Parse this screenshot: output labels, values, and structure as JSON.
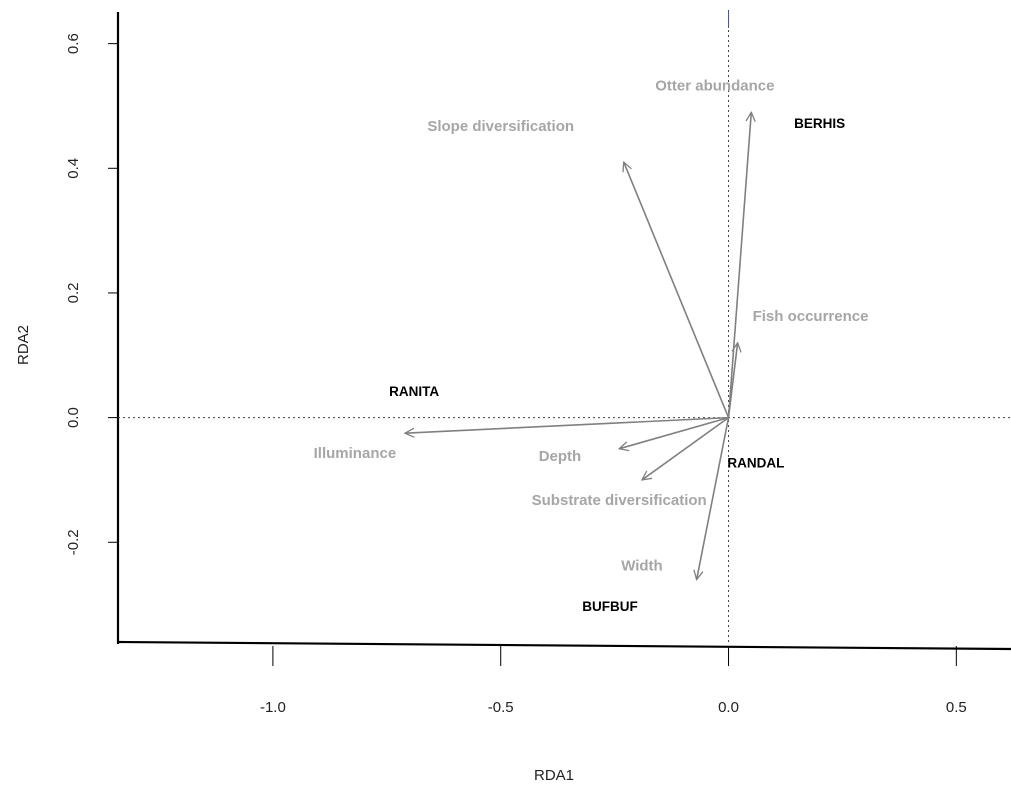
{
  "chart_data": {
    "type": "scatter",
    "xlabel": "RDA1",
    "ylabel": "RDA2",
    "xlim": [
      -1.34,
      0.62
    ],
    "ylim": [
      -0.36,
      0.67
    ],
    "x_ticks": [
      {
        "value": -1.0,
        "label": "-1.0"
      },
      {
        "value": -0.5,
        "label": "-0.5"
      },
      {
        "value": 0.0,
        "label": "0.0"
      },
      {
        "value": 0.5,
        "label": "0.5"
      }
    ],
    "y_ticks": [
      {
        "value": -0.2,
        "label": "-0.2"
      },
      {
        "value": 0.0,
        "label": "0.0"
      },
      {
        "value": 0.2,
        "label": "0.2"
      },
      {
        "value": 0.4,
        "label": "0.4"
      },
      {
        "value": 0.6,
        "label": "0.6"
      }
    ],
    "reference_lines": {
      "x": 0,
      "y": 0,
      "style": "dotted"
    },
    "arrow_color": "#808080",
    "variable_label_color": "#a6a6a6",
    "species_label_color": "#000000",
    "environmental_vectors": [
      {
        "label": "Otter abundance",
        "x": 0.05,
        "y": 0.49,
        "label_x": -0.03,
        "label_y": 0.525
      },
      {
        "label": "Slope diversification",
        "x": -0.23,
        "y": 0.41,
        "label_x": -0.5,
        "label_y": 0.46
      },
      {
        "label": "Fish occurrence",
        "x": 0.02,
        "y": 0.12,
        "label_x": 0.18,
        "label_y": 0.155
      },
      {
        "label": "Illuminance",
        "x": -0.71,
        "y": -0.025,
        "label_x": -0.82,
        "label_y": -0.065
      },
      {
        "label": "Depth",
        "x": -0.24,
        "y": -0.05,
        "label_x": -0.37,
        "label_y": -0.07
      },
      {
        "label": "Substrate diversification",
        "x": -0.19,
        "y": -0.1,
        "label_x": -0.24,
        "label_y": -0.14
      },
      {
        "label": "Width",
        "x": -0.07,
        "y": -0.26,
        "label_x": -0.19,
        "label_y": -0.245
      }
    ],
    "species": [
      {
        "label": "BERHIS",
        "x": 0.2,
        "y": 0.465
      },
      {
        "label": "RANITA",
        "x": -0.69,
        "y": 0.035
      },
      {
        "label": "RANDAL",
        "x": 0.06,
        "y": -0.08
      },
      {
        "label": "BUFBUF",
        "x": -0.26,
        "y": -0.31
      }
    ]
  }
}
